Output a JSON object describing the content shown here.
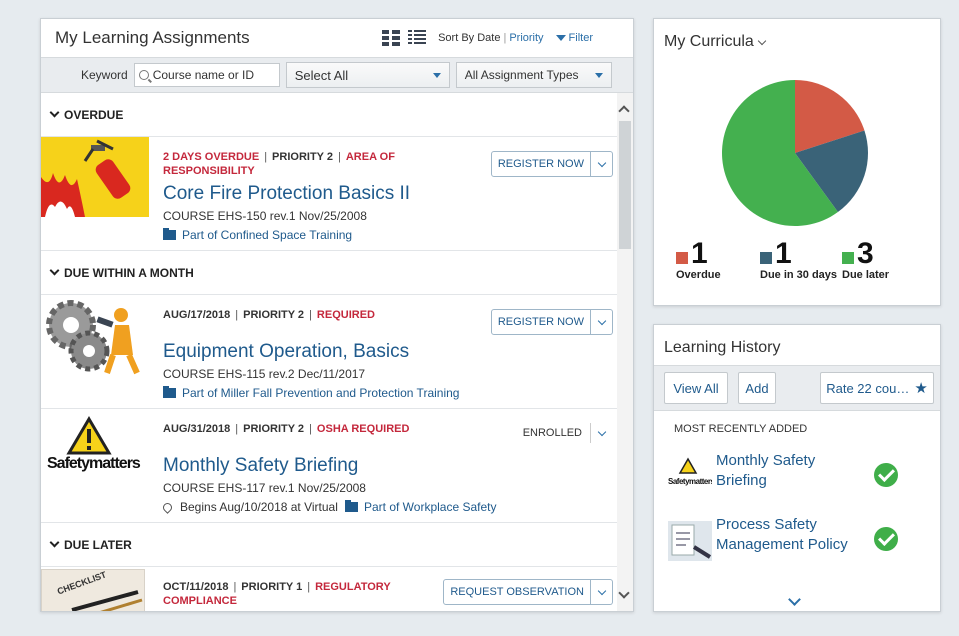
{
  "assignments": {
    "title": "My Learning Assignments",
    "sort_prefix": "Sort By Date",
    "sort_priority": "Priority",
    "filter_label": "Filter",
    "keyword_label": "Keyword",
    "keyword_placeholder": "Course name or ID",
    "select_all": "Select All",
    "assignment_types": "All Assignment Types",
    "sections": {
      "overdue": "OVERDUE",
      "month": "DUE WITHIN A MONTH",
      "later": "DUE LATER"
    },
    "items": [
      {
        "status": "2 DAYS OVERDUE",
        "priority": "PRIORITY 2",
        "tag": "AREA OF",
        "tag2": "RESPONSIBILITY",
        "title": "Core Fire Protection Basics II",
        "code": "COURSE EHS-150 rev.1 Nov/25/2008",
        "part": "Part of Confined Space Training",
        "action": "REGISTER NOW"
      },
      {
        "date": "AUG/17/2018",
        "priority": "PRIORITY 2",
        "tag": "REQUIRED",
        "title": "Equipment Operation, Basics",
        "code": "COURSE EHS-115 rev.2 Dec/11/2017",
        "part": "Part of Miller Fall Prevention and Protection Training",
        "action": "REGISTER NOW"
      },
      {
        "date": "AUG/31/2018",
        "priority": "PRIORITY 2",
        "tag": "OSHA REQUIRED",
        "title": "Monthly Safety Briefing",
        "code": "COURSE EHS-117 rev.1 Nov/25/2008",
        "location": "Begins Aug/10/2018 at Virtual",
        "part": "Part of Workplace Safety",
        "status_label": "ENROLLED",
        "thumb_text": "Safetymatters"
      },
      {
        "date": "OCT/11/2018",
        "priority": "PRIORITY 1",
        "tag": "REGULATORY",
        "tag2": "COMPLIANCE",
        "action": "REQUEST OBSERVATION",
        "thumb_text": "CHECKLIST"
      }
    ]
  },
  "curricula": {
    "title": "My Curricula",
    "chart_data": {
      "type": "pie",
      "slices": [
        {
          "label": "Overdue",
          "value": 1,
          "color": "#d35a46"
        },
        {
          "label": "Due in 30 days",
          "value": 1,
          "color": "#3a6378"
        },
        {
          "label": "Due later",
          "value": 3,
          "color": "#44b04f"
        }
      ]
    },
    "legend": [
      {
        "count": "1",
        "label": "Overdue"
      },
      {
        "count": "1",
        "label": "Due in 30 days"
      },
      {
        "count": "3",
        "label": "Due later"
      }
    ]
  },
  "history": {
    "title": "Learning History",
    "view_all": "View All",
    "add": "Add",
    "rate": "Rate 22 cou…",
    "most_recent": "MOST RECENTLY ADDED",
    "items": [
      {
        "title": "Monthly Safety Briefing",
        "thumb_text": "Safetymatters"
      },
      {
        "title": "Process Safety Management Policy"
      }
    ]
  }
}
